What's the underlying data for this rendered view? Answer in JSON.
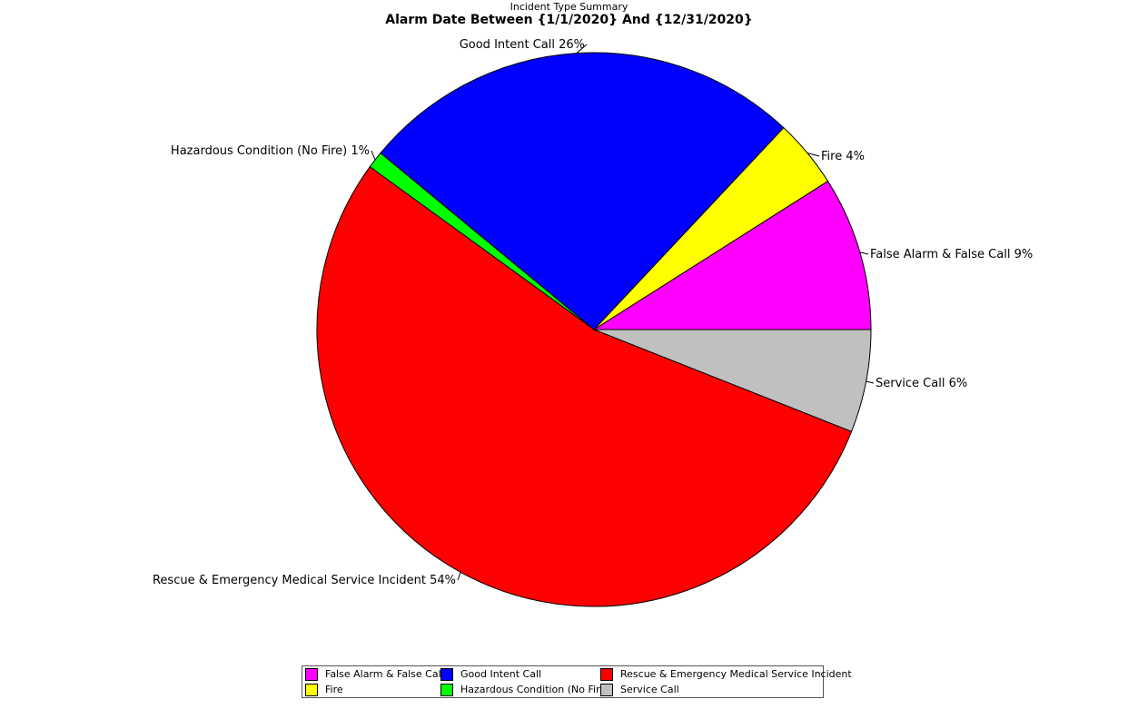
{
  "chart_data": {
    "type": "pie",
    "title": "Incident Type Summary",
    "subtitle": "Alarm Date Between {1/1/2020} And {12/31/2020}",
    "slices": [
      {
        "name": "False Alarm & False Call",
        "label": "False Alarm & False Call 9%",
        "value": 9,
        "color": "#ff00ff"
      },
      {
        "name": "Fire",
        "label": "Fire 4%",
        "value": 4,
        "color": "#ffff00"
      },
      {
        "name": "Good Intent Call",
        "label": "Good Intent Call 26%",
        "value": 26,
        "color": "#0000ff"
      },
      {
        "name": "Hazardous Condition (No Fire)",
        "label": "Hazardous Condition (No Fire) 1%",
        "value": 1,
        "color": "#00ff00"
      },
      {
        "name": "Rescue & Emergency Medical Service Incident",
        "label": "Rescue & Emergency Medical Service Incident 54%",
        "value": 54,
        "color": "#ff0000"
      },
      {
        "name": "Service Call",
        "label": "Service Call 6%",
        "value": 6,
        "color": "#c0c0c0"
      }
    ],
    "legend_position": "bottom"
  }
}
